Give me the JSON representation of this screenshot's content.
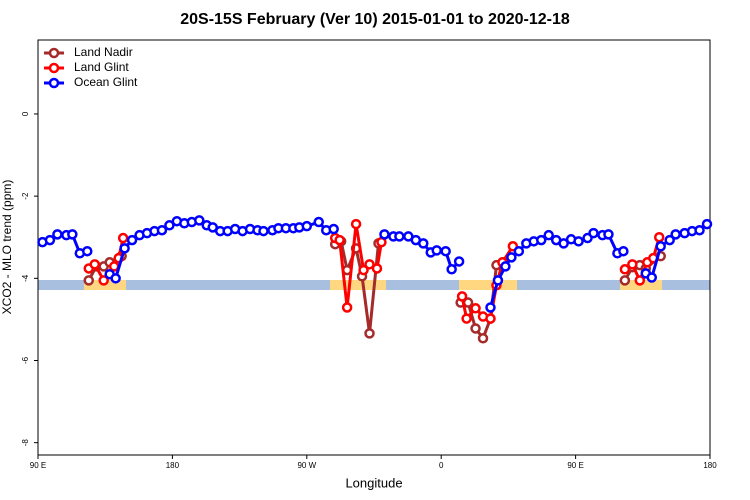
{
  "chart_data": {
    "type": "line",
    "title": "20S-15S February (Ver 10)   2015-01-01 to 2020-12-18",
    "x_label": "Longitude",
    "y_label": "XCO2 - MLO trend (ppm)",
    "xlim": [
      90,
      540
    ],
    "ylim": [
      -8.3,
      1.8
    ],
    "xticks": [
      {
        "value": 90,
        "label": "90 E"
      },
      180,
      {
        "value": 270,
        "label": "90 W"
      },
      {
        "value": 360,
        "label": "0"
      },
      {
        "value": 450,
        "label": "90 E"
      },
      {
        "value": 540,
        "label": "180"
      }
    ],
    "yticks": [
      0,
      -2,
      -4,
      -6,
      -8
    ],
    "legend": "top-left",
    "series": [
      {
        "name": "Land Nadir",
        "color": "#a52a2a",
        "x": [
          124,
          129,
          134,
          138,
          146,
          null,
          289,
          293,
          297,
          303,
          307,
          312,
          318,
          null,
          373,
          378,
          383,
          388,
          393,
          397,
          402,
          null,
          483,
          488,
          493,
          497,
          507
        ],
        "values": [
          -4.05,
          -3.71,
          -3.71,
          -3.61,
          -3.46,
          null,
          -3.17,
          -3.1,
          -3.8,
          -3.27,
          -3.95,
          -5.34,
          -3.15,
          null,
          -4.59,
          -4.59,
          -5.22,
          -5.46,
          -4.98,
          -3.68,
          -3.61,
          null,
          -4.05,
          -3.73,
          -3.68,
          -3.76,
          -3.46
        ]
      },
      {
        "name": "Land Glint",
        "color": "#ff0000",
        "x": [
          124,
          128,
          134,
          141,
          144,
          147,
          null,
          289,
          292,
          297,
          303,
          308,
          312,
          317,
          320,
          null,
          374,
          377,
          383,
          388,
          393,
          397,
          401,
          408,
          null,
          483,
          488,
          493,
          498,
          502,
          506
        ],
        "values": [
          -3.76,
          -3.66,
          -4.05,
          -3.71,
          -3.51,
          -3.02,
          null,
          -3.02,
          -3.07,
          -4.71,
          -2.68,
          -3.8,
          -3.66,
          -3.76,
          -3.12,
          null,
          -4.44,
          -4.98,
          -4.73,
          -4.93,
          -4.98,
          -4.17,
          -3.61,
          -3.22,
          null,
          -3.78,
          -3.66,
          -4.05,
          -3.61,
          -3.51,
          -3.0
        ]
      },
      {
        "name": "Ocean Glint",
        "color": "#0000ff",
        "x": [
          93,
          98,
          103,
          109,
          113,
          118,
          123,
          null,
          138,
          142,
          148,
          153,
          158,
          163,
          168,
          173,
          178,
          183,
          188,
          193,
          198,
          203,
          207,
          212,
          217,
          222,
          227,
          232,
          237,
          241,
          247,
          251,
          256,
          261,
          265,
          270,
          278,
          283,
          288,
          null,
          322,
          328,
          332,
          338,
          343,
          348,
          353,
          357,
          363,
          367,
          372,
          null,
          393,
          398,
          403,
          407,
          412,
          417,
          422,
          427,
          432,
          437,
          442,
          447,
          452,
          458,
          462,
          468,
          472,
          478,
          482,
          null,
          497,
          501,
          507,
          513,
          517,
          523,
          528,
          533,
          538
        ],
        "values": [
          -3.12,
          -3.07,
          -2.93,
          -2.95,
          -2.93,
          -3.39,
          -3.34,
          null,
          -3.9,
          -4.0,
          -3.27,
          -3.07,
          -2.95,
          -2.9,
          -2.85,
          -2.83,
          -2.71,
          -2.61,
          -2.66,
          -2.63,
          -2.59,
          -2.71,
          -2.76,
          -2.85,
          -2.85,
          -2.8,
          -2.85,
          -2.8,
          -2.83,
          -2.85,
          -2.83,
          -2.78,
          -2.78,
          -2.78,
          -2.76,
          -2.73,
          -2.63,
          -2.83,
          -2.8,
          null,
          -2.93,
          -2.98,
          -2.98,
          -2.98,
          -3.07,
          -3.15,
          -3.37,
          -3.32,
          -3.34,
          -3.78,
          -3.59,
          null,
          -4.71,
          -4.05,
          -3.71,
          -3.49,
          -3.34,
          -3.15,
          -3.1,
          -3.07,
          -2.95,
          -3.07,
          -3.15,
          -3.05,
          -3.1,
          -3.02,
          -2.9,
          -2.95,
          -2.93,
          -3.39,
          -3.34,
          null,
          -3.88,
          -3.98,
          -3.22,
          -3.07,
          -2.93,
          -2.9,
          -2.85,
          -2.83,
          -2.68
        ]
      }
    ]
  }
}
